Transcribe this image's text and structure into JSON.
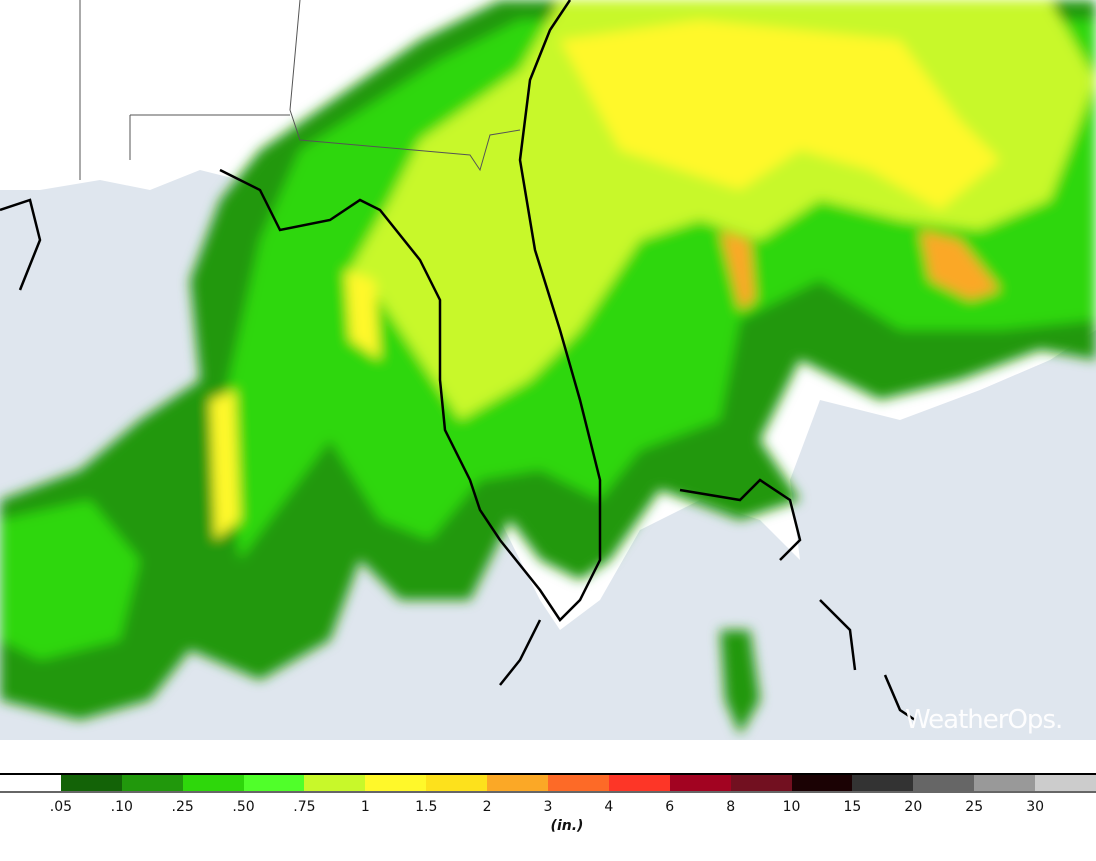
{
  "legend": {
    "unit": "(in.)",
    "colors": [
      "#ffffff",
      "#136307",
      "#21980c",
      "#2ed70b",
      "#50ff2a",
      "#c8f82a",
      "#fff82a",
      "#fde11c",
      "#fba826",
      "#fd6a27",
      "#fd3627",
      "#a20321",
      "#721020",
      "#1b0204",
      "#333333",
      "#666666",
      "#999999",
      "#cccccc"
    ],
    "ticks": [
      ".05",
      ".10",
      ".25",
      ".50",
      ".75",
      "1",
      "1.5",
      "2",
      "3",
      "4",
      "6",
      "8",
      "10",
      "15",
      "20",
      "25",
      "30"
    ]
  },
  "map": {
    "ocean_color": "#dfe6ee",
    "land_color": "#ffffff"
  },
  "brand": "WeatherOps."
}
